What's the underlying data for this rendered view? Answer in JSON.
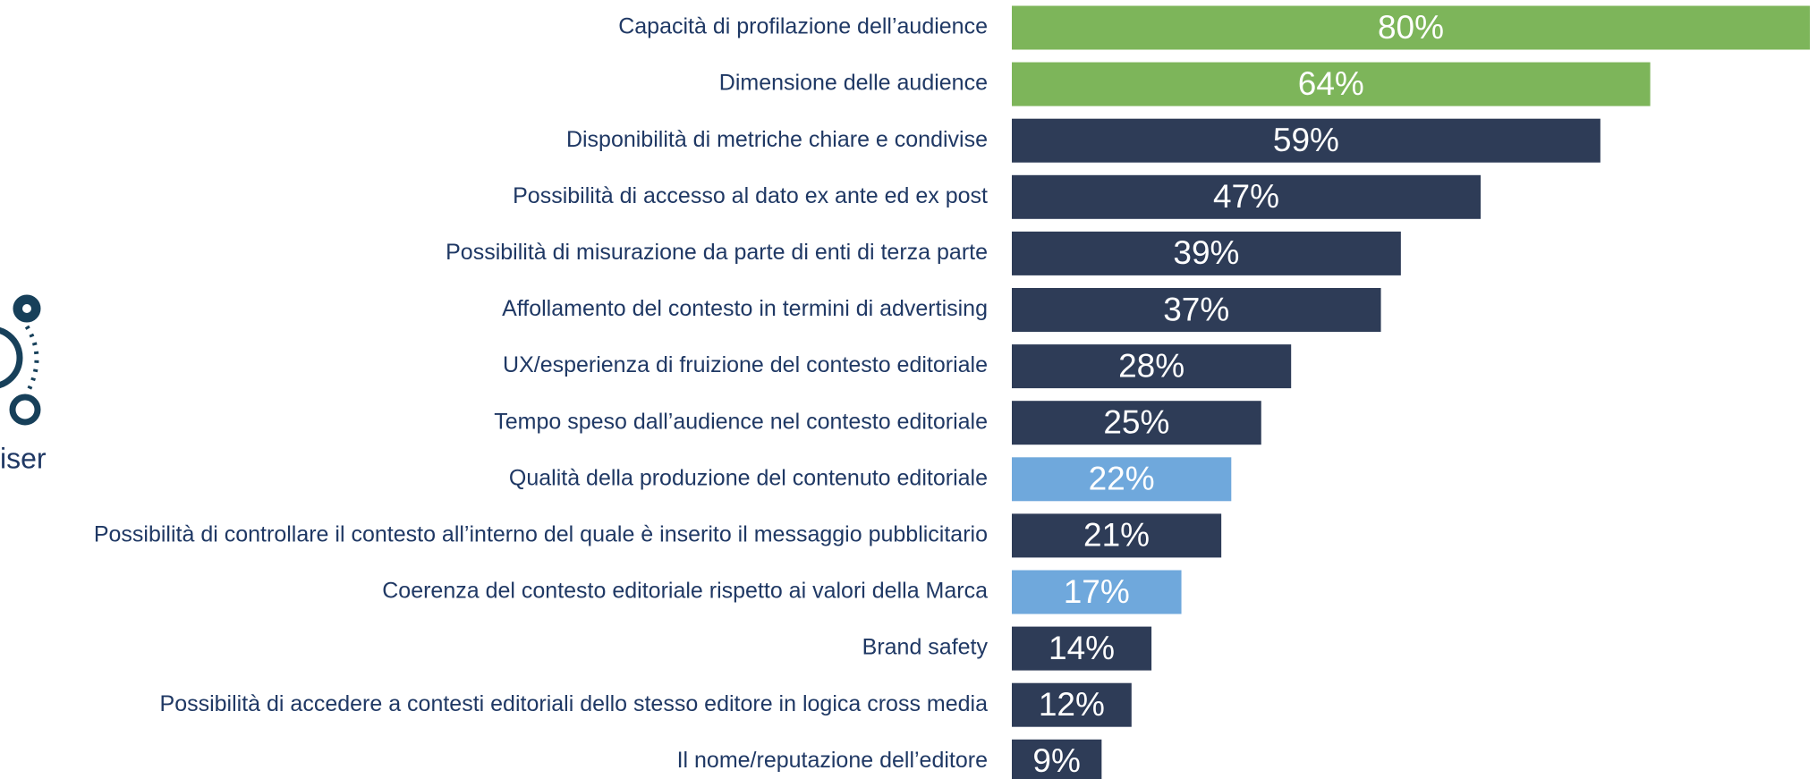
{
  "chart_data": {
    "type": "barh",
    "annotation": "iser",
    "categories": [
      "Capacità di profilazione dell’audience",
      "Dimensione delle audience",
      "Disponibilità di metriche chiare e condivise",
      "Possibilità di accesso al dato ex ante ed ex post",
      "Possibilità di misurazione da parte di enti di terza parte",
      "Affollamento del contesto in termini di advertising",
      "UX/esperienza di fruizione del contesto editoriale",
      "Tempo speso dall’audience nel contesto editoriale",
      "Qualità della produzione del contenuto editoriale",
      "Possibilità di controllare il contesto all’interno del quale è inserito il messaggio pubblicitario",
      "Coerenza del contesto editoriale rispetto ai valori della Marca",
      "Brand safety",
      "Possibilità di accedere a contesti editoriali dello stesso editore in logica cross media",
      "Il nome/reputazione dell’editore"
    ],
    "values": [
      80,
      64,
      59,
      47,
      39,
      37,
      28,
      25,
      22,
      21,
      17,
      14,
      12,
      9
    ],
    "value_labels": [
      "80%",
      "64%",
      "59%",
      "47%",
      "39%",
      "37%",
      "28%",
      "25%",
      "22%",
      "21%",
      "17%",
      "14%",
      "12%",
      "9%"
    ],
    "colors": [
      "#7db55a",
      "#7db55a",
      "#2e3c57",
      "#2e3c57",
      "#2e3c57",
      "#2e3c57",
      "#2e3c57",
      "#2e3c57",
      "#6fa8dc",
      "#2e3c57",
      "#6fa8dc",
      "#2e3c57",
      "#2e3c57",
      "#2e3c57"
    ],
    "xlim": [
      0,
      80
    ]
  }
}
